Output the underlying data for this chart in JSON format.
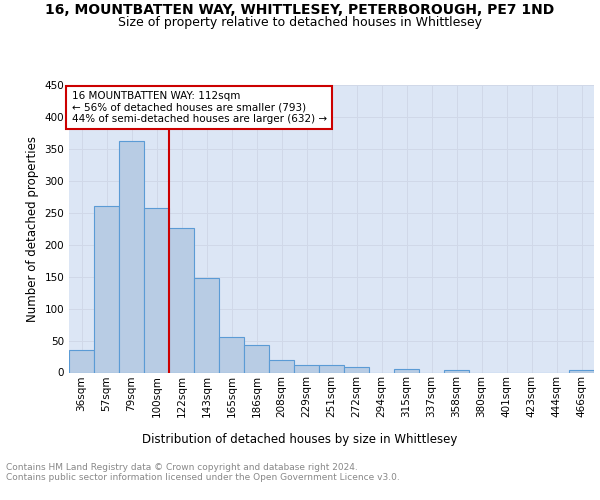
{
  "title": "16, MOUNTBATTEN WAY, WHITTLESEY, PETERBOROUGH, PE7 1ND",
  "subtitle": "Size of property relative to detached houses in Whittlesey",
  "xlabel": "Distribution of detached houses by size in Whittlesey",
  "ylabel": "Number of detached properties",
  "bin_labels": [
    "36sqm",
    "57sqm",
    "79sqm",
    "100sqm",
    "122sqm",
    "143sqm",
    "165sqm",
    "186sqm",
    "208sqm",
    "229sqm",
    "251sqm",
    "272sqm",
    "294sqm",
    "315sqm",
    "337sqm",
    "358sqm",
    "380sqm",
    "401sqm",
    "423sqm",
    "444sqm",
    "466sqm"
  ],
  "bar_values": [
    35,
    260,
    363,
    257,
    226,
    148,
    55,
    43,
    20,
    12,
    12,
    8,
    0,
    6,
    0,
    4,
    0,
    0,
    0,
    0,
    4
  ],
  "bar_color": "#b8cce4",
  "bar_edge_color": "#5b9bd5",
  "vline_x_index": 3.5,
  "annotation_text": "16 MOUNTBATTEN WAY: 112sqm\n← 56% of detached houses are smaller (793)\n44% of semi-detached houses are larger (632) →",
  "annotation_box_color": "#ffffff",
  "annotation_box_edge_color": "#cc0000",
  "vline_color": "#cc0000",
  "grid_color": "#d0d8e8",
  "background_color": "#dce6f5",
  "footer_text": "Contains HM Land Registry data © Crown copyright and database right 2024.\nContains public sector information licensed under the Open Government Licence v3.0.",
  "ylim": [
    0,
    450
  ],
  "title_fontsize": 10,
  "subtitle_fontsize": 9,
  "axis_label_fontsize": 8.5,
  "tick_fontsize": 7.5,
  "footer_fontsize": 6.5
}
